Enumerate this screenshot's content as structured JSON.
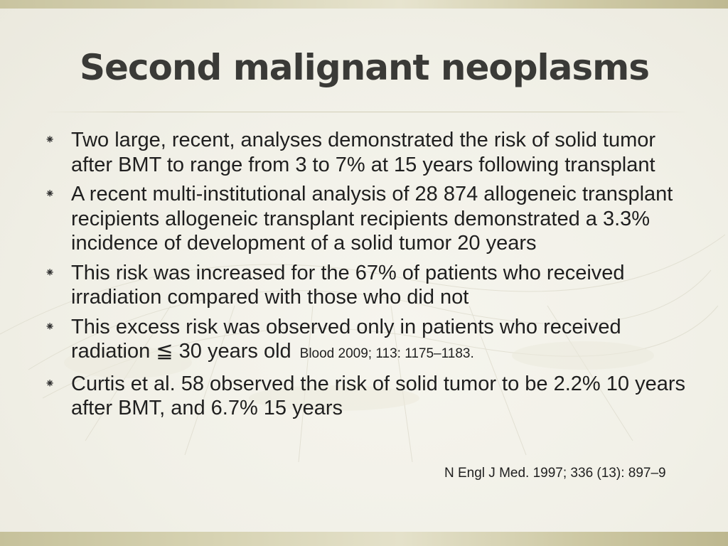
{
  "slide": {
    "title": "Second malignant neoplasms",
    "bullet_marker": "⁕",
    "bullets": [
      {
        "text": "Two large, recent, analyses demonstrated the risk of solid tumor after BMT to range from 3 to 7% at 15 years following transplant"
      },
      {
        "text": "A recent multi-institutional analysis of 28 874 allogeneic transplant recipients allogeneic transplant recipients demonstrated a 3.3% incidence of development of a solid tumor 20 years"
      },
      {
        "text": "This risk was increased for the 67% of patients who received irradiation compared with those who did not"
      },
      {
        "text": "This excess risk was observed only in patients who received radiation ≦ 30 years old",
        "reference": "Blood 2009; 113: 1175–1183."
      },
      {
        "text": "Curtis et al. 58 observed the risk of solid tumor to be 2.2% 10 years after BMT, and 6.7% 15 years"
      }
    ],
    "reference_nejm": "N Engl J Med. 1997; 336 (13): 897–9"
  },
  "colors": {
    "background": "#f2f1e9",
    "title": "#3a3a37",
    "text": "#1f1f1f",
    "band": "#cfcaa6"
  }
}
